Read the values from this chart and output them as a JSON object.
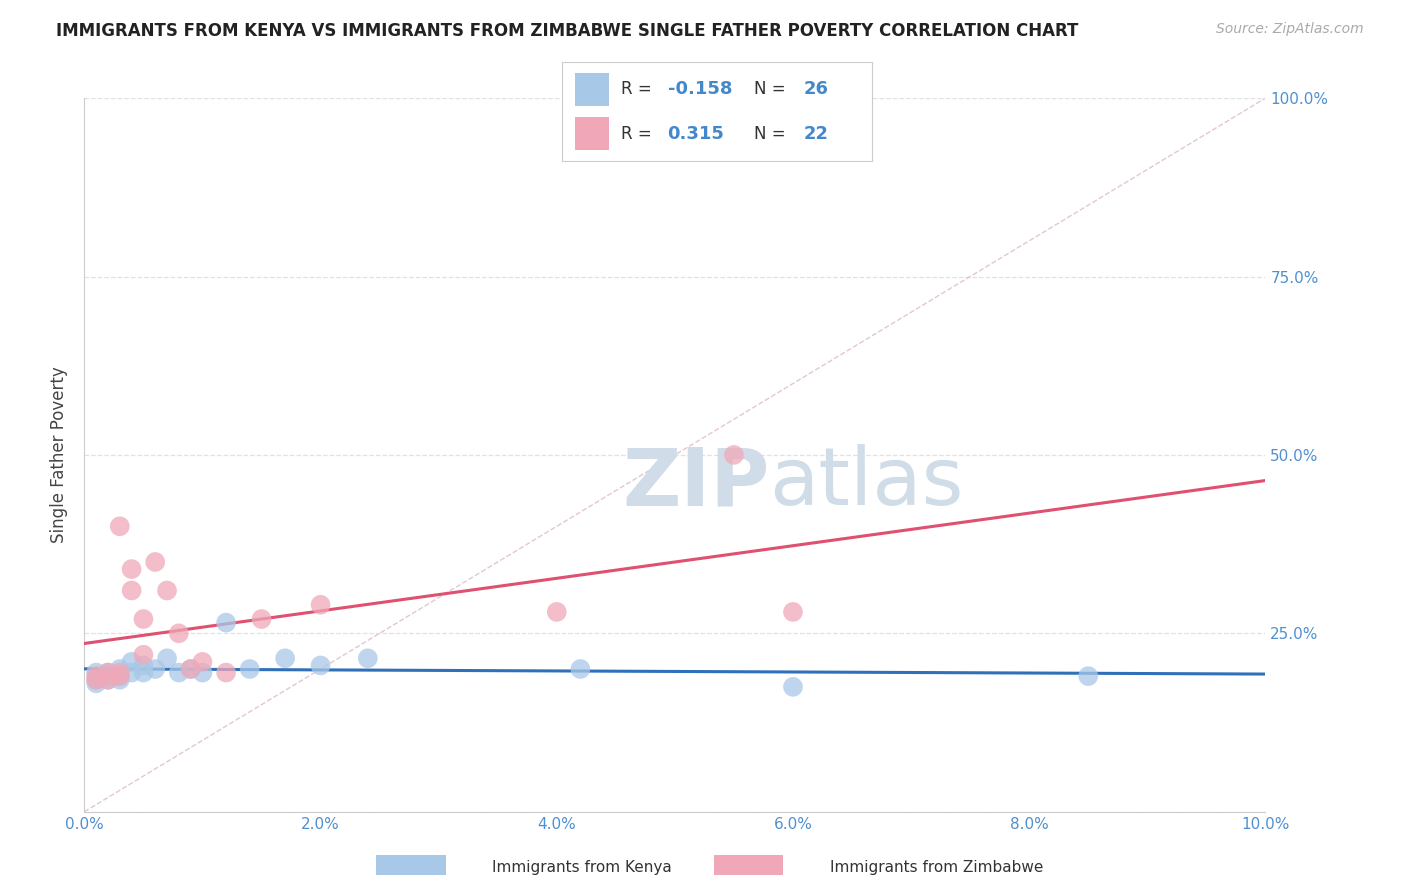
{
  "title": "IMMIGRANTS FROM KENYA VS IMMIGRANTS FROM ZIMBABWE SINGLE FATHER POVERTY CORRELATION CHART",
  "source": "Source: ZipAtlas.com",
  "ylabel": "Single Father Poverty",
  "legend_label_kenya": "Immigrants from Kenya",
  "legend_label_zimbabwe": "Immigrants from Zimbabwe",
  "kenya_R": -0.158,
  "kenya_N": 26,
  "zimbabwe_R": 0.315,
  "zimbabwe_N": 22,
  "kenya_color": "#a8c8e8",
  "zimbabwe_color": "#f0a8b8",
  "kenya_line_color": "#3070b8",
  "zimbabwe_line_color": "#e05070",
  "diag_color": "#e0c0d0",
  "xlim": [
    0.0,
    0.1
  ],
  "ylim": [
    0.0,
    1.0
  ],
  "xticks": [
    0.0,
    0.02,
    0.04,
    0.06,
    0.08,
    0.1
  ],
  "yticks": [
    0.0,
    0.25,
    0.5,
    0.75,
    1.0
  ],
  "xtick_labels": [
    "0.0%",
    "2.0%",
    "4.0%",
    "6.0%",
    "8.0%",
    "10.0%"
  ],
  "ytick_labels_right": [
    "",
    "25.0%",
    "50.0%",
    "75.0%",
    "100.0%"
  ],
  "kenya_x": [
    0.001,
    0.001,
    0.001,
    0.002,
    0.002,
    0.002,
    0.003,
    0.003,
    0.003,
    0.004,
    0.004,
    0.005,
    0.005,
    0.006,
    0.007,
    0.008,
    0.009,
    0.01,
    0.012,
    0.014,
    0.017,
    0.02,
    0.024,
    0.042,
    0.06,
    0.085
  ],
  "kenya_y": [
    0.195,
    0.185,
    0.18,
    0.19,
    0.195,
    0.185,
    0.185,
    0.2,
    0.19,
    0.21,
    0.195,
    0.195,
    0.205,
    0.2,
    0.215,
    0.195,
    0.2,
    0.195,
    0.265,
    0.2,
    0.215,
    0.205,
    0.215,
    0.2,
    0.175,
    0.19
  ],
  "zimbabwe_x": [
    0.001,
    0.001,
    0.002,
    0.002,
    0.003,
    0.003,
    0.003,
    0.004,
    0.004,
    0.005,
    0.005,
    0.006,
    0.007,
    0.008,
    0.009,
    0.01,
    0.012,
    0.015,
    0.02,
    0.04,
    0.055,
    0.06
  ],
  "zimbabwe_y": [
    0.185,
    0.19,
    0.195,
    0.185,
    0.195,
    0.19,
    0.4,
    0.31,
    0.34,
    0.27,
    0.22,
    0.35,
    0.31,
    0.25,
    0.2,
    0.21,
    0.195,
    0.27,
    0.29,
    0.28,
    0.5,
    0.28
  ],
  "watermark_zip": "ZIP",
  "watermark_atlas": "atlas",
  "watermark_color": "#d0dce8",
  "background_color": "#ffffff",
  "grid_color": "#e0e0e8",
  "tick_color": "#5090d0",
  "title_color": "#222222",
  "source_color": "#aaaaaa",
  "legend_R_color": "#4488cc",
  "legend_text_color": "#333333"
}
